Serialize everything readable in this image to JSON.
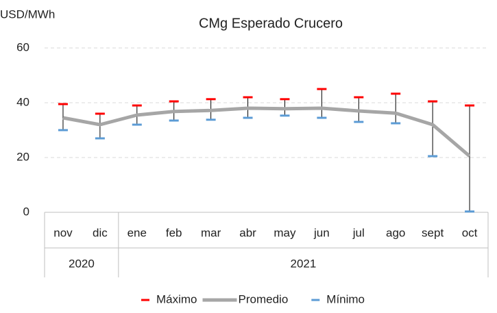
{
  "chart_data": {
    "type": "line",
    "title": "CMg Esperado Crucero",
    "y_label": "USD/MWh",
    "categories": [
      "nov",
      "dic",
      "ene",
      "feb",
      "mar",
      "abr",
      "may",
      "jun",
      "jul",
      "ago",
      "sept",
      "oct"
    ],
    "groups": [
      {
        "label": "2020",
        "span": 2
      },
      {
        "label": "2021",
        "span": 10
      }
    ],
    "series": [
      {
        "name": "Máximo",
        "color": "#ff0000",
        "mark": "dash",
        "values": [
          39.5,
          36,
          39,
          40.5,
          41.3,
          42,
          41.3,
          45,
          42,
          43.3,
          40.5,
          39
        ]
      },
      {
        "name": "Promedio",
        "color": "#a6a6a6",
        "mark": "line",
        "values": [
          34.5,
          32,
          35.5,
          36.8,
          37.2,
          38,
          37.8,
          38,
          37,
          36.2,
          32,
          20.5
        ]
      },
      {
        "name": "Mínimo",
        "color": "#5b9bd5",
        "mark": "dash",
        "values": [
          30,
          27,
          32,
          33.5,
          33.8,
          34.5,
          35.3,
          34.5,
          33,
          32.5,
          20.5,
          0.3
        ]
      }
    ],
    "high_low_lines": true,
    "ylim": [
      0,
      60
    ],
    "yticks": [
      0,
      20,
      40,
      60
    ],
    "grid": true,
    "legend": "bottom"
  }
}
